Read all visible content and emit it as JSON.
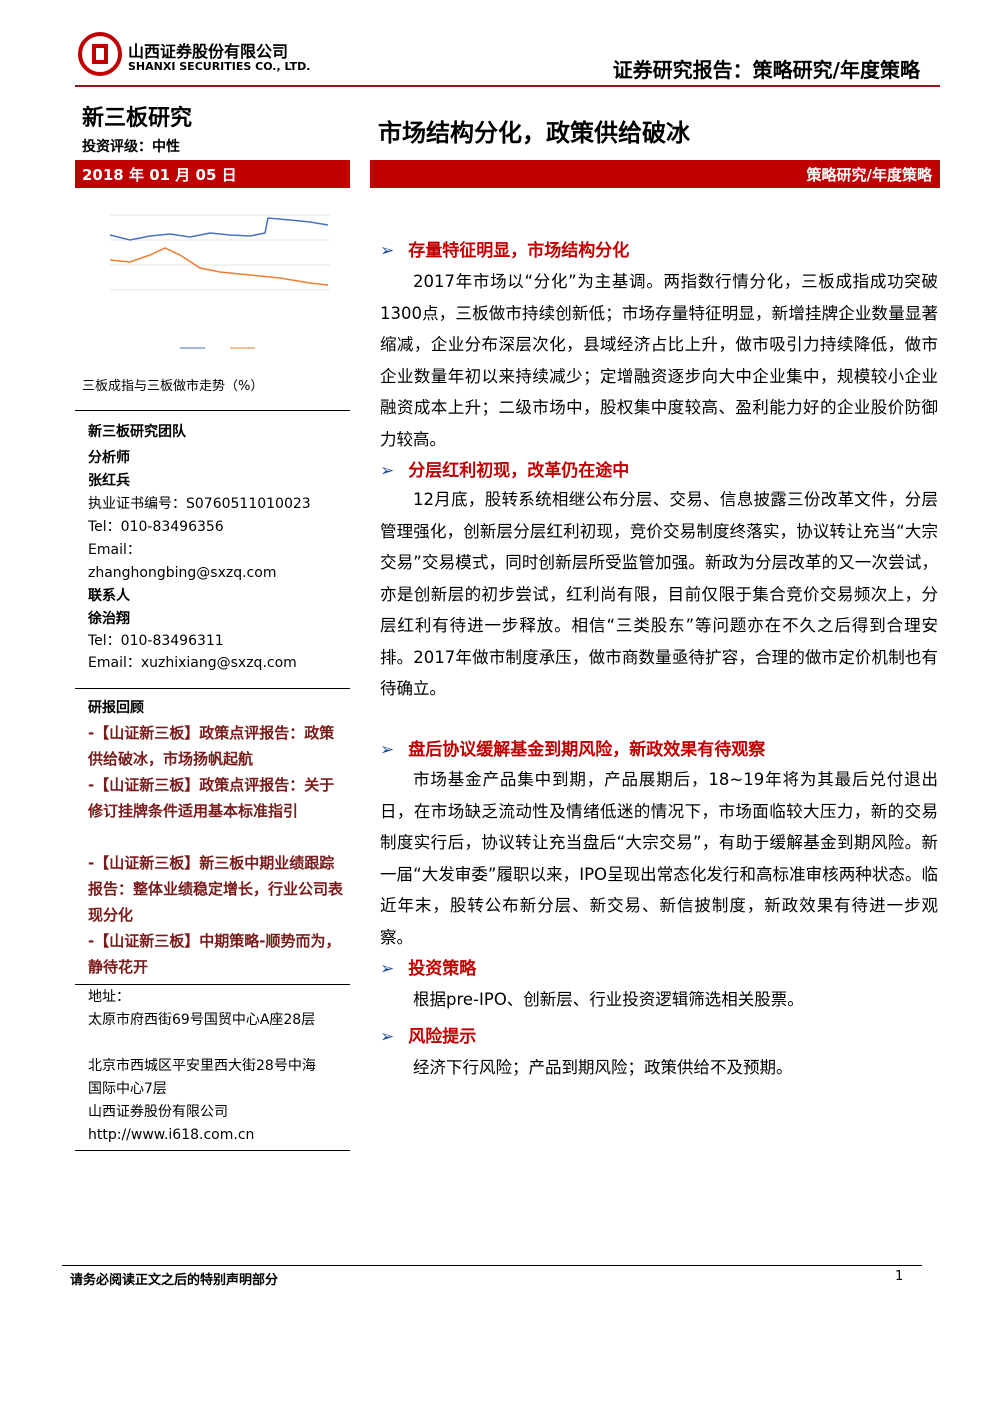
{
  "header": {
    "company_cn": "山西证券股份有限公司",
    "company_en": "SHANXI SECURITIES CO., LTD.",
    "report_type": "证券研究报告：策略研究/年度策略"
  },
  "sidebar": {
    "section": "新三板研究",
    "rating": "投资评级：中性",
    "date": "2018 年 01 月 05 日",
    "chart_caption": "三板成指与三板做市走势（%）",
    "team": {
      "title": "新三板研究团队",
      "analyst_label": "分析师",
      "analyst_name": "张红兵",
      "license": "执业证书编号：S0760511010023",
      "tel": "Tel：010-83496356",
      "email_label": "Email：",
      "email": "zhanghongbing@sxzq.com",
      "contact_label": "联系人",
      "contact_name": "徐治翔",
      "contact_tel": "Tel：010-83496311",
      "contact_email": "Email：xuzhixiang@sxzq.com"
    },
    "reviews": {
      "title": "研报回顾",
      "items": [
        "-【山证新三板】政策点评报告：政策供给破冰，市场扬帆起航",
        "-【山证新三板】政策点评报告：关于修订挂牌条件适用基本标准指引",
        "-【山证新三板】新三板中期业绩跟踪报告：整体业绩稳定增长，行业公司表现分化",
        "-【山证新三板】中期策略-顺势而为，静待花开"
      ]
    },
    "address": {
      "label": "地址：",
      "lines": [
        "太原市府西街69号国贸中心A座28层",
        "北京市西城区平安里西大街28号中海国际中心7层",
        "山西证券股份有限公司",
        "http://www.i618.com.cn"
      ]
    }
  },
  "main": {
    "title": "市场结构分化，政策供给破冰",
    "tag": "策略研究/年度策略",
    "sections": [
      {
        "heading": "存量特征明显，市场结构分化",
        "body": "2017年市场以“分化”为主基调。两指数行情分化，三板成指成功突破1300点，三板做市持续创新低；市场存量特征明显，新增挂牌企业数量显著缩减，企业分布深层次化，县域经济占比上升，做市吸引力持续降低，做市企业数量年初以来持续减少；定增融资逐步向大中企业集中，规模较小企业融资成本上升；二级市场中，股权集中度较高、盈利能力好的企业股价防御力较高。"
      },
      {
        "heading": "分层红利初现，改革仍在途中",
        "body": "12月底，股转系统相继公布分层、交易、信息披露三份改革文件，分层管理强化，创新层分层红利初现，竞价交易制度终落实，协议转让充当“大宗交易”交易模式，同时创新层所受监管加强。新政为分层改革的又一次尝试，亦是创新层的初步尝试，红利尚有限，目前仅限于集合竞价交易频次上，分层红利有待进一步释放。相信“三类股东”等问题亦在不久之后得到合理安排。2017年做市制度承压，做市商数量亟待扩容，合理的做市定价机制也有待确立。"
      },
      {
        "heading": "盘后协议缓解基金到期风险，新政效果有待观察",
        "body": "市场基金产品集中到期，产品展期后，18~19年将为其最后兑付退出日，在市场缺乏流动性及情绪低迷的情况下，市场面临较大压力，新的交易制度实行后，协议转让充当盘后“大宗交易”，有助于缓解基金到期风险。新一届“大发审委”履职以来，IPO呈现出常态化发行和高标准审核两种状态。临近年末，股转公布新分层、新交易、新信披制度，新政效果有待进一步观察。"
      },
      {
        "heading": "投资策略",
        "body": "根据pre-IPO、创新层、行业投资逻辑筛选相关股票。"
      },
      {
        "heading": "风险提示",
        "body": "经济下行风险；产品到期风险；政策供给不及预期。"
      }
    ]
  },
  "footer": {
    "disclaimer": "请务必阅读正文之后的特别声明部分",
    "page": "1"
  }
}
